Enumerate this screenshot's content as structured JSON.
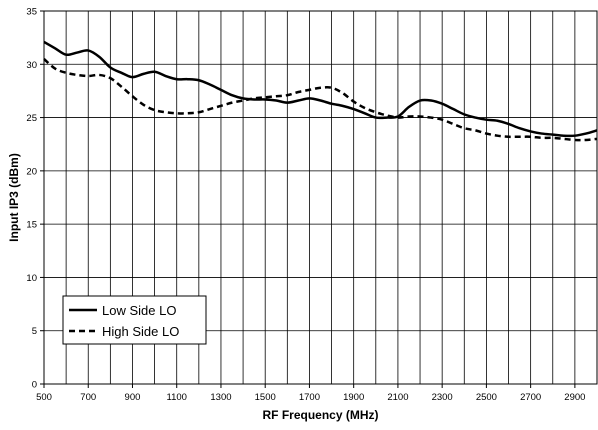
{
  "chart_data": {
    "type": "line",
    "title": "",
    "xlabel": "RF Frequency (MHz)",
    "ylabel": "Input IP3 (dBm)",
    "xlim": [
      500,
      3000
    ],
    "ylim": [
      0,
      35
    ],
    "x_ticks": [
      500,
      700,
      900,
      1100,
      1300,
      1500,
      1700,
      1900,
      2100,
      2300,
      2500,
      2700,
      2900
    ],
    "y_ticks": [
      0,
      5,
      10,
      15,
      20,
      25,
      30,
      35
    ],
    "x_gridlines": [
      500,
      600,
      700,
      800,
      900,
      1000,
      1100,
      1200,
      1300,
      1400,
      1500,
      1600,
      1700,
      1800,
      1900,
      2000,
      2100,
      2200,
      2300,
      2400,
      2500,
      2600,
      2700,
      2800,
      2900,
      3000
    ],
    "grid": true,
    "legend_position": "bottom-left",
    "series": [
      {
        "name": "Low Side LO",
        "style": "solid",
        "color": "#000000",
        "x": [
          500,
          550,
          600,
          650,
          700,
          750,
          800,
          850,
          900,
          950,
          1000,
          1050,
          1100,
          1150,
          1200,
          1250,
          1300,
          1350,
          1400,
          1450,
          1500,
          1550,
          1600,
          1650,
          1700,
          1750,
          1800,
          1850,
          1900,
          1950,
          2000,
          2050,
          2100,
          2150,
          2200,
          2250,
          2300,
          2350,
          2400,
          2450,
          2500,
          2550,
          2600,
          2650,
          2700,
          2750,
          2800,
          2850,
          2900,
          2950,
          3000
        ],
        "y": [
          32.1,
          31.5,
          30.9,
          31.1,
          31.3,
          30.7,
          29.7,
          29.2,
          28.8,
          29.1,
          29.3,
          28.9,
          28.6,
          28.6,
          28.5,
          28.1,
          27.6,
          27.1,
          26.8,
          26.7,
          26.7,
          26.6,
          26.4,
          26.6,
          26.8,
          26.6,
          26.3,
          26.1,
          25.8,
          25.4,
          25.0,
          25.0,
          25.1,
          26.0,
          26.6,
          26.6,
          26.3,
          25.8,
          25.3,
          25.0,
          24.8,
          24.7,
          24.4,
          24.0,
          23.7,
          23.5,
          23.4,
          23.3,
          23.3,
          23.5,
          23.8
        ]
      },
      {
        "name": "High Side LO",
        "style": "dashed",
        "color": "#000000",
        "x": [
          500,
          550,
          600,
          650,
          700,
          750,
          800,
          850,
          900,
          950,
          1000,
          1050,
          1100,
          1150,
          1200,
          1250,
          1300,
          1350,
          1400,
          1450,
          1500,
          1550,
          1600,
          1650,
          1700,
          1750,
          1800,
          1850,
          1900,
          1950,
          2000,
          2050,
          2100,
          2150,
          2200,
          2250,
          2300,
          2350,
          2400,
          2450,
          2500,
          2550,
          2600,
          2650,
          2700,
          2750,
          2800,
          2850,
          2900,
          2950,
          3000
        ],
        "y": [
          30.5,
          29.6,
          29.2,
          29.0,
          28.9,
          29.0,
          28.7,
          27.9,
          27.0,
          26.2,
          25.7,
          25.5,
          25.4,
          25.4,
          25.5,
          25.8,
          26.1,
          26.4,
          26.6,
          26.8,
          26.9,
          27.0,
          27.1,
          27.4,
          27.6,
          27.8,
          27.8,
          27.3,
          26.5,
          25.9,
          25.5,
          25.2,
          25.0,
          25.1,
          25.1,
          25.0,
          24.8,
          24.4,
          24.0,
          23.8,
          23.5,
          23.3,
          23.2,
          23.2,
          23.2,
          23.1,
          23.1,
          23.0,
          22.9,
          22.9,
          23.0
        ]
      }
    ]
  }
}
